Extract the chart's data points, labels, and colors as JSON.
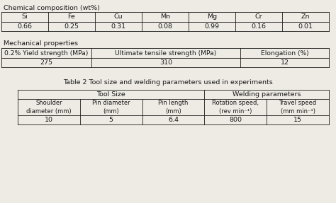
{
  "bg_color": "#eeebe5",
  "text_color": "#1a1a1a",
  "title1": "Chemical composition (wt%)",
  "chem_headers": [
    "Si",
    "Fe",
    "Cu",
    "Mn",
    "Mg",
    "Cr",
    "Zn"
  ],
  "chem_values": [
    "0.66",
    "0.25",
    "0.31",
    "0.08",
    "0.99",
    "0.16",
    "0.01"
  ],
  "title2": "Mechanical properties",
  "mech_headers": [
    "0.2% Yield strength (MPa)",
    "Ultimate tensile strength (MPa)",
    "Elongation (%)"
  ],
  "mech_values": [
    "275",
    "310",
    "12"
  ],
  "title3": "Table 2 Tool size and welding parameters used in experiments",
  "tool_group1": "Tool Size",
  "tool_group2": "Welding parameters",
  "tool_headers": [
    "Shoulder\ndiameter (mm)",
    "Pin diameter\n(mm)",
    "Pin length\n(mm)",
    "Rotation speed,\n(rev min⁻¹)",
    "Travel speed\n(mm min⁻¹)"
  ],
  "tool_values": [
    "10",
    "5",
    "6.4",
    "800",
    "15"
  ],
  "font_size": 6.8,
  "lw": 0.6
}
